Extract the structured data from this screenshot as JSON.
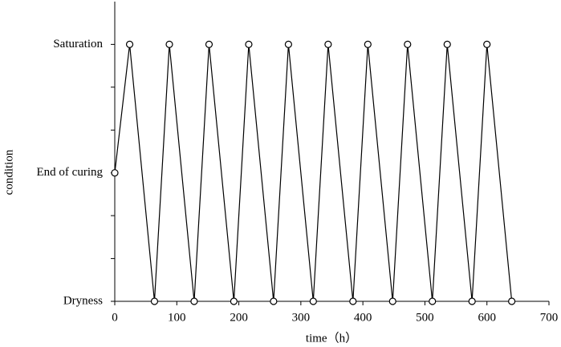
{
  "chart_data": {
    "type": "line",
    "x_label": "time（h）",
    "y_label": "condition",
    "x": [
      0,
      24,
      64,
      88,
      128,
      152,
      192,
      216,
      256,
      280,
      320,
      344,
      384,
      408,
      448,
      472,
      512,
      536,
      576,
      600,
      640
    ],
    "series": [
      {
        "color": "#000000",
        "values": [
          1,
          2,
          0,
          2,
          0,
          2,
          0,
          2,
          0,
          2,
          0,
          2,
          0,
          2,
          0,
          2,
          0,
          2,
          0,
          2,
          0
        ]
      }
    ],
    "xlim": [
      0,
      700
    ],
    "xticks": [
      0,
      100,
      200,
      300,
      400,
      500,
      600,
      700
    ],
    "ylim": [
      0,
      2.333
    ],
    "yticks": [
      {
        "value": 0,
        "label": "Dryness"
      },
      {
        "value": 1,
        "label": "End of curing"
      },
      {
        "value": 2,
        "label": "Saturation"
      }
    ],
    "minor_yticks": [
      0.333,
      0.667,
      1.333,
      1.667
    ],
    "markers": "open-circle"
  }
}
